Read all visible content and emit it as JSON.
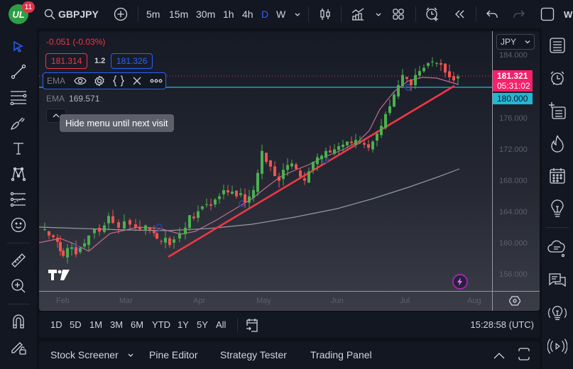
{
  "topbar": {
    "notification_count": "11",
    "logo_text": "UL",
    "symbol": "GBPJPY",
    "intervals": [
      "5m",
      "15m",
      "30m",
      "1h",
      "4h",
      "D",
      "W"
    ],
    "active_interval": "D",
    "truncated_text": "W"
  },
  "legend": {
    "change": "-0.051 (-0.03%)",
    "bid": "181.314",
    "spread": "1.2",
    "ask": "181.326",
    "indicator1_label": "EMA",
    "indicator2_label": "EMA",
    "indicator2_value": "169.571",
    "tooltip": "Hide menu until next visit"
  },
  "price_axis": {
    "currency": "JPY",
    "ticks": [
      "184.000",
      "176.000",
      "172.000",
      "168.000",
      "164.000",
      "160.000",
      "156.000"
    ],
    "last_price": "181.321",
    "countdown": "05:31:02",
    "horizontal_line_price": "180.000",
    "last_price_color": "#f7206a",
    "hline_color": "#22b8d4"
  },
  "time_axis": {
    "ticks": [
      "Feb",
      "Mar",
      "Apr",
      "May",
      "Jun",
      "Jul",
      "Aug"
    ]
  },
  "range_bar": {
    "ranges": [
      "1D",
      "5D",
      "1M",
      "3M",
      "6M",
      "YTD",
      "1Y",
      "5Y",
      "All"
    ],
    "clock": "15:28:58 (UTC)"
  },
  "bottom_bar": {
    "tabs": [
      "Stock Screener",
      "Pine Editor",
      "Strategy Tester",
      "Trading Panel"
    ]
  },
  "colors": {
    "up": "#4caf50",
    "down": "#ef5350",
    "accent": "#2962ff",
    "trendline": "#f23645",
    "ema_fast": "#c26b93",
    "ema_slow": "#9598a1"
  }
}
